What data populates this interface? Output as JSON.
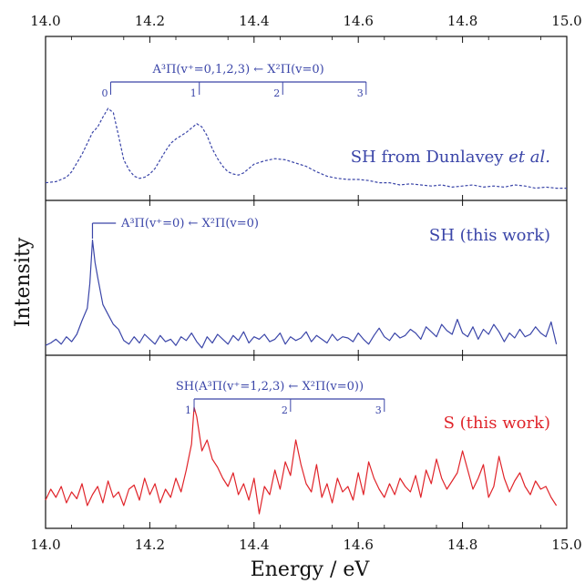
{
  "chart_data": {
    "type": "line",
    "xlabel": "Energy / eV",
    "ylabel": "Intensity",
    "xlim": [
      14.0,
      15.0
    ],
    "xticks": [
      "14.0",
      "14.2",
      "14.4",
      "14.6",
      "14.8",
      "15.0"
    ],
    "colors": {
      "blue": "#3a45a8",
      "red": "#e0242a",
      "frame": "#111111"
    },
    "panels": [
      {
        "label": "SH from Dunlavey et al.",
        "label_main": "SH from Dunlavey ",
        "label_italic": "et al.",
        "color": "#3a45a8",
        "line_style": "dashed",
        "ylim": [
          0,
          1
        ],
        "annotation": "A³Π(v⁺=0,1,2,3) ← X²Π(v=0)",
        "progression": [
          {
            "n": "0",
            "x": 14.125
          },
          {
            "n": "1",
            "x": 14.295
          },
          {
            "n": "2",
            "x": 14.455
          },
          {
            "n": "3",
            "x": 14.615
          }
        ],
        "series": [
          {
            "x": [
              14.0,
              14.02,
              14.04,
              14.05,
              14.06,
              14.07,
              14.08,
              14.09,
              14.1,
              14.11,
              14.12,
              14.13,
              14.14,
              14.15,
              14.16,
              14.17,
              14.18,
              14.19,
              14.2,
              14.21,
              14.22,
              14.23,
              14.24,
              14.25,
              14.26,
              14.27,
              14.28,
              14.29,
              14.3,
              14.31,
              14.32,
              14.33,
              14.34,
              14.35,
              14.36,
              14.37,
              14.38,
              14.39,
              14.4,
              14.42,
              14.44,
              14.46,
              14.48,
              14.5,
              14.52,
              14.54,
              14.56,
              14.58,
              14.6,
              14.62,
              14.64,
              14.66,
              14.68,
              14.7,
              14.72,
              14.74,
              14.76,
              14.78,
              14.8,
              14.82,
              14.84,
              14.86,
              14.88,
              14.9,
              14.92,
              14.94,
              14.96,
              14.98,
              15.0
            ],
            "y": [
              0.12,
              0.13,
              0.17,
              0.22,
              0.3,
              0.38,
              0.48,
              0.58,
              0.63,
              0.72,
              0.8,
              0.76,
              0.55,
              0.33,
              0.24,
              0.18,
              0.16,
              0.17,
              0.2,
              0.25,
              0.33,
              0.41,
              0.48,
              0.52,
              0.55,
              0.58,
              0.62,
              0.66,
              0.63,
              0.55,
              0.43,
              0.34,
              0.27,
              0.22,
              0.2,
              0.19,
              0.21,
              0.25,
              0.29,
              0.32,
              0.34,
              0.33,
              0.3,
              0.27,
              0.22,
              0.18,
              0.16,
              0.15,
              0.15,
              0.14,
              0.12,
              0.12,
              0.1,
              0.11,
              0.1,
              0.09,
              0.1,
              0.08,
              0.09,
              0.1,
              0.08,
              0.09,
              0.08,
              0.1,
              0.09,
              0.07,
              0.08,
              0.07,
              0.07
            ]
          }
        ]
      },
      {
        "label": "SH (this work)",
        "color": "#3a45a8",
        "line_style": "solid",
        "ylim": [
          0,
          1
        ],
        "annotation": "A³Π(v⁺=0) ← X²Π(v=0)",
        "marker_x": 14.09,
        "series": [
          {
            "x": [
              14.0,
              14.01,
              14.02,
              14.03,
              14.04,
              14.05,
              14.06,
              14.07,
              14.08,
              14.085,
              14.09,
              14.095,
              14.1,
              14.11,
              14.12,
              14.13,
              14.14,
              14.15,
              14.16,
              14.17,
              14.18,
              14.19,
              14.2,
              14.21,
              14.22,
              14.23,
              14.24,
              14.25,
              14.26,
              14.27,
              14.28,
              14.29,
              14.3,
              14.31,
              14.32,
              14.33,
              14.34,
              14.35,
              14.36,
              14.37,
              14.38,
              14.39,
              14.4,
              14.41,
              14.42,
              14.43,
              14.44,
              14.45,
              14.46,
              14.47,
              14.48,
              14.49,
              14.5,
              14.51,
              14.52,
              14.53,
              14.54,
              14.55,
              14.56,
              14.57,
              14.58,
              14.59,
              14.6,
              14.61,
              14.62,
              14.63,
              14.64,
              14.65,
              14.66,
              14.67,
              14.68,
              14.69,
              14.7,
              14.71,
              14.72,
              14.73,
              14.74,
              14.75,
              14.76,
              14.77,
              14.78,
              14.79,
              14.8,
              14.81,
              14.82,
              14.83,
              14.84,
              14.85,
              14.86,
              14.87,
              14.88,
              14.89,
              14.9,
              14.91,
              14.92,
              14.93,
              14.94,
              14.95,
              14.96,
              14.97,
              14.98
            ],
            "y": [
              0.05,
              0.07,
              0.1,
              0.06,
              0.12,
              0.08,
              0.14,
              0.25,
              0.35,
              0.55,
              0.9,
              0.72,
              0.6,
              0.38,
              0.3,
              0.22,
              0.18,
              0.09,
              0.06,
              0.12,
              0.07,
              0.14,
              0.1,
              0.06,
              0.13,
              0.08,
              0.1,
              0.05,
              0.12,
              0.09,
              0.15,
              0.08,
              0.03,
              0.12,
              0.07,
              0.14,
              0.1,
              0.06,
              0.13,
              0.09,
              0.16,
              0.07,
              0.12,
              0.1,
              0.14,
              0.08,
              0.1,
              0.15,
              0.06,
              0.12,
              0.09,
              0.11,
              0.16,
              0.08,
              0.13,
              0.1,
              0.07,
              0.14,
              0.09,
              0.12,
              0.11,
              0.08,
              0.15,
              0.1,
              0.06,
              0.13,
              0.19,
              0.12,
              0.09,
              0.15,
              0.11,
              0.13,
              0.18,
              0.15,
              0.1,
              0.2,
              0.16,
              0.12,
              0.22,
              0.17,
              0.14,
              0.26,
              0.15,
              0.12,
              0.2,
              0.1,
              0.18,
              0.14,
              0.22,
              0.16,
              0.08,
              0.15,
              0.11,
              0.18,
              0.12,
              0.14,
              0.2,
              0.15,
              0.12,
              0.24,
              0.06
            ]
          }
        ]
      },
      {
        "label": "S (this work)",
        "color": "#e0242a",
        "line_style": "solid",
        "ylim": [
          0,
          1
        ],
        "annotation": "SH(A³Π(v⁺=1,2,3) ← X²Π(v=0))",
        "annotation_color": "#3a45a8",
        "progression": [
          {
            "n": "1",
            "x": 14.285
          },
          {
            "n": "2",
            "x": 14.47
          },
          {
            "n": "3",
            "x": 14.65
          }
        ],
        "series": [
          {
            "x": [
              14.0,
              14.01,
              14.02,
              14.03,
              14.04,
              14.05,
              14.06,
              14.07,
              14.08,
              14.09,
              14.1,
              14.11,
              14.12,
              14.13,
              14.14,
              14.15,
              14.16,
              14.17,
              14.18,
              14.19,
              14.2,
              14.21,
              14.22,
              14.23,
              14.24,
              14.25,
              14.26,
              14.27,
              14.28,
              14.285,
              14.29,
              14.3,
              14.31,
              14.32,
              14.33,
              14.34,
              14.35,
              14.36,
              14.37,
              14.38,
              14.39,
              14.4,
              14.41,
              14.42,
              14.43,
              14.44,
              14.45,
              14.46,
              14.47,
              14.48,
              14.49,
              14.5,
              14.51,
              14.52,
              14.53,
              14.54,
              14.55,
              14.56,
              14.57,
              14.58,
              14.59,
              14.6,
              14.61,
              14.62,
              14.63,
              14.64,
              14.65,
              14.66,
              14.67,
              14.68,
              14.69,
              14.7,
              14.71,
              14.72,
              14.73,
              14.74,
              14.75,
              14.76,
              14.77,
              14.78,
              14.79,
              14.8,
              14.81,
              14.82,
              14.83,
              14.84,
              14.85,
              14.86,
              14.87,
              14.88,
              14.89,
              14.9,
              14.91,
              14.92,
              14.93,
              14.94,
              14.95,
              14.96,
              14.97,
              14.98
            ],
            "y": [
              0.14,
              0.22,
              0.16,
              0.24,
              0.12,
              0.2,
              0.15,
              0.26,
              0.1,
              0.18,
              0.24,
              0.12,
              0.28,
              0.16,
              0.2,
              0.1,
              0.22,
              0.25,
              0.14,
              0.3,
              0.18,
              0.26,
              0.12,
              0.22,
              0.16,
              0.3,
              0.2,
              0.36,
              0.55,
              0.82,
              0.75,
              0.5,
              0.58,
              0.44,
              0.38,
              0.3,
              0.24,
              0.34,
              0.18,
              0.26,
              0.14,
              0.3,
              0.04,
              0.24,
              0.18,
              0.36,
              0.22,
              0.42,
              0.32,
              0.58,
              0.4,
              0.26,
              0.2,
              0.4,
              0.16,
              0.26,
              0.12,
              0.3,
              0.2,
              0.24,
              0.14,
              0.34,
              0.18,
              0.42,
              0.3,
              0.22,
              0.16,
              0.26,
              0.18,
              0.3,
              0.24,
              0.2,
              0.32,
              0.16,
              0.36,
              0.26,
              0.44,
              0.3,
              0.22,
              0.28,
              0.34,
              0.5,
              0.36,
              0.22,
              0.3,
              0.4,
              0.16,
              0.24,
              0.46,
              0.3,
              0.2,
              0.28,
              0.34,
              0.24,
              0.18,
              0.28,
              0.22,
              0.24,
              0.16,
              0.1
            ]
          }
        ]
      }
    ]
  }
}
